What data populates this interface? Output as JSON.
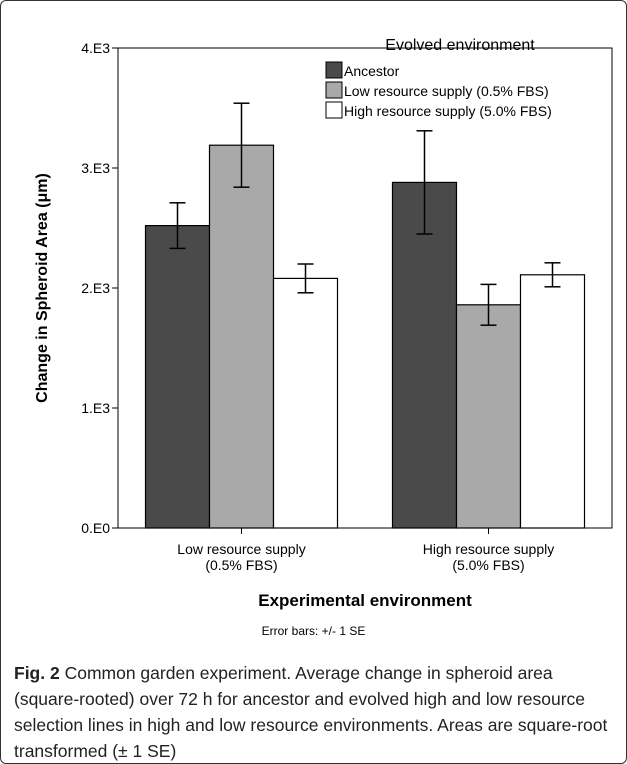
{
  "chart_data": {
    "type": "bar",
    "categories": [
      "Low resource supply\n(0.5% FBS)",
      "High resource supply\n(5.0% FBS)"
    ],
    "series": [
      {
        "name": "Ancestor",
        "values": [
          2520,
          2880
        ],
        "errors": [
          190,
          430
        ],
        "color": "#4a4a4a"
      },
      {
        "name": "Low resource supply (0.5% FBS)",
        "values": [
          3190,
          1860
        ],
        "errors": [
          350,
          170
        ],
        "color": "#a9a9a9"
      },
      {
        "name": "High resource supply (5.0% FBS)",
        "values": [
          2080,
          2110
        ],
        "errors": [
          120,
          100
        ],
        "color": "#ffffff"
      }
    ],
    "xlabel": "Experimental environment",
    "ylabel": "Change in Spheroid Area (μm)",
    "ylim": [
      0,
      4000
    ],
    "yticks": [
      0,
      1000,
      2000,
      3000,
      4000
    ],
    "yticklabels": [
      "0.E0",
      "1.E3",
      "2.E3",
      "3.E3",
      "4.E3"
    ],
    "legend_title": "Evolved environment",
    "legend_position": "top-right"
  },
  "note": "Error bars: +/- 1 SE",
  "caption": {
    "label": "Fig. 2",
    "text": "Common garden experiment. Average change in spheroid area (square-rooted) over 72 h for ancestor and evolved high and low resource selection lines in high and low resource environments. Areas are square-root transformed (± 1 SE)"
  }
}
